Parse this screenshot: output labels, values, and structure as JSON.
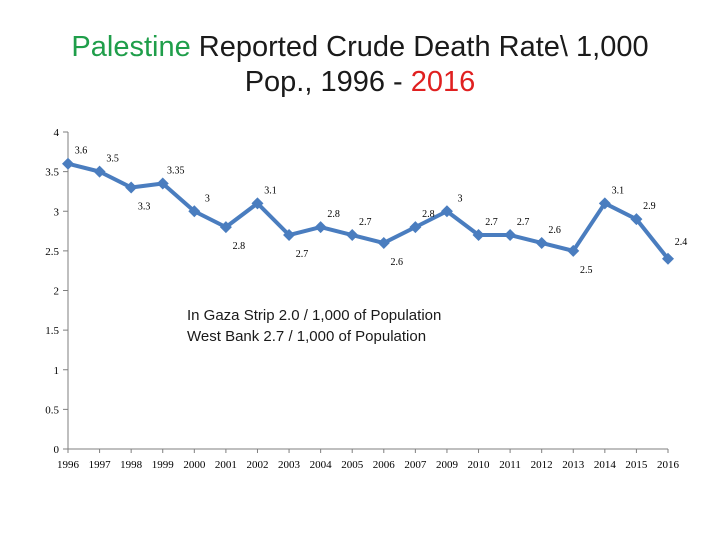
{
  "title": {
    "part1": "Palestine",
    "part2": " Reported Crude Death Rate\\ 1,000",
    "part3": "Pop., 1996 - ",
    "part4": "2016"
  },
  "note": {
    "line1": "In Gaza Strip 2.0 / 1,000 of Population",
    "line2": "West Bank 2.7 / 1,000 of Population"
  },
  "colors": {
    "series": "#4a7dbf",
    "title_highlight_green": "#1f9e4a",
    "title_highlight_red": "#e02020",
    "axis": "#7f7f7f"
  },
  "chart_data": {
    "type": "line",
    "title": "Palestine Reported Crude Death Rate\\ 1,000 Pop., 1996 - 2016",
    "xlabel": "",
    "ylabel": "",
    "ylim": [
      0,
      4
    ],
    "yticks": [
      "0",
      "0.5",
      "1",
      "1.5",
      "2",
      "2.5",
      "3",
      "3.5",
      "4"
    ],
    "categories": [
      "1996",
      "1997",
      "1998",
      "1999",
      "2000",
      "2001",
      "2002",
      "2003",
      "2004",
      "2005",
      "2006",
      "2007",
      "2009",
      "2010",
      "2011",
      "2012",
      "2013",
      "2014",
      "2015",
      "2016"
    ],
    "series": [
      {
        "name": "Crude Death Rate",
        "values": [
          3.6,
          3.5,
          3.3,
          3.35,
          3,
          2.8,
          3.1,
          2.7,
          2.8,
          2.7,
          2.6,
          2.8,
          3,
          2.7,
          2.7,
          2.6,
          2.5,
          3.1,
          2.9,
          2.4
        ],
        "labels": [
          "3.6",
          "3.5",
          "3.3",
          "3.35",
          "3",
          "2.8",
          "3.1",
          "2.7",
          "2.8",
          "2.7",
          "2.6",
          "2.8",
          "3",
          "2.7",
          "2.7",
          "2.6",
          "2.5",
          "3.1",
          "2.9",
          "2.4"
        ]
      }
    ],
    "grid": false,
    "legend": "none"
  }
}
